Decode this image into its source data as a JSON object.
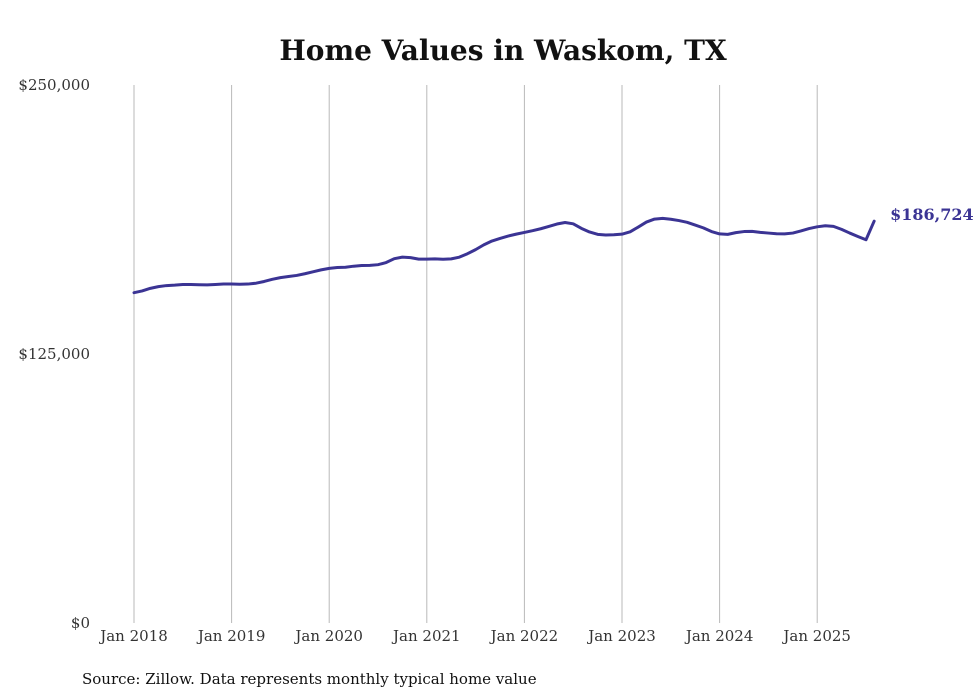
{
  "chart_data": {
    "type": "line",
    "title": "Home Values in Waskom, TX",
    "ylim": [
      0,
      250000
    ],
    "y_ticks": [
      {
        "value": 250000,
        "label": "$250,000"
      },
      {
        "value": 125000,
        "label": "$125,000"
      },
      {
        "value": 0,
        "label": "$0"
      }
    ],
    "x_ticks": [
      {
        "value": "2018-01",
        "label": "Jan 2018"
      },
      {
        "value": "2019-01",
        "label": "Jan 2019"
      },
      {
        "value": "2020-01",
        "label": "Jan 2020"
      },
      {
        "value": "2021-01",
        "label": "Jan 2021"
      },
      {
        "value": "2022-01",
        "label": "Jan 2022"
      },
      {
        "value": "2023-01",
        "label": "Jan 2023"
      },
      {
        "value": "2024-01",
        "label": "Jan 2024"
      },
      {
        "value": "2025-01",
        "label": "Jan 2025"
      }
    ],
    "x_range": [
      "2018-01",
      "2025-08"
    ],
    "grid": "vertical",
    "line_color": "#3b3494",
    "end_label": "$186,724",
    "series": [
      {
        "x": [
          "2018-01",
          "2018-02",
          "2018-03",
          "2018-04",
          "2018-05",
          "2018-06",
          "2018-07",
          "2018-08",
          "2018-09",
          "2018-10",
          "2018-11",
          "2018-12",
          "2019-01",
          "2019-02",
          "2019-03",
          "2019-04",
          "2019-05",
          "2019-06",
          "2019-07",
          "2019-08",
          "2019-09",
          "2019-10",
          "2019-11",
          "2019-12",
          "2020-01",
          "2020-02",
          "2020-03",
          "2020-04",
          "2020-05",
          "2020-06",
          "2020-07",
          "2020-08",
          "2020-09",
          "2020-10",
          "2020-11",
          "2020-12",
          "2021-01",
          "2021-02",
          "2021-03",
          "2021-04",
          "2021-05",
          "2021-06",
          "2021-07",
          "2021-08",
          "2021-09",
          "2021-10",
          "2021-11",
          "2021-12",
          "2022-01",
          "2022-02",
          "2022-03",
          "2022-04",
          "2022-05",
          "2022-06",
          "2022-07",
          "2022-08",
          "2022-09",
          "2022-10",
          "2022-11",
          "2022-12",
          "2023-01",
          "2023-02",
          "2023-03",
          "2023-04",
          "2023-05",
          "2023-06",
          "2023-07",
          "2023-08",
          "2023-09",
          "2023-10",
          "2023-11",
          "2023-12",
          "2024-01",
          "2024-02",
          "2024-03",
          "2024-04",
          "2024-05",
          "2024-06",
          "2024-07",
          "2024-08",
          "2024-09",
          "2024-10",
          "2024-11",
          "2024-12",
          "2025-01",
          "2025-02",
          "2025-03",
          "2025-04",
          "2025-05",
          "2025-06",
          "2025-07",
          "2025-08"
        ],
        "values": [
          153500,
          154300,
          155500,
          156300,
          156800,
          157000,
          157300,
          157300,
          157200,
          157100,
          157300,
          157500,
          157500,
          157400,
          157500,
          157900,
          158700,
          159700,
          160500,
          161000,
          161500,
          162300,
          163200,
          164100,
          164800,
          165200,
          165300,
          165800,
          166100,
          166200,
          166500,
          167500,
          169300,
          170000,
          169800,
          169100,
          169100,
          169200,
          169000,
          169200,
          170000,
          171600,
          173500,
          175700,
          177500,
          178700,
          179800,
          180700,
          181500,
          182300,
          183200,
          184300,
          185400,
          186100,
          185500,
          183400,
          181700,
          180600,
          180300,
          180400,
          180700,
          181800,
          184000,
          186300,
          187700,
          188000,
          187600,
          187000,
          186200,
          184900,
          183600,
          181900,
          180800,
          180600,
          181400,
          181900,
          182000,
          181500,
          181200,
          180900,
          180800,
          181200,
          182200,
          183300,
          184100,
          184600,
          184300,
          182900,
          181200,
          179600,
          178100,
          186724
        ]
      }
    ]
  },
  "source_note": "Source: Zillow. Data represents monthly typical home value"
}
